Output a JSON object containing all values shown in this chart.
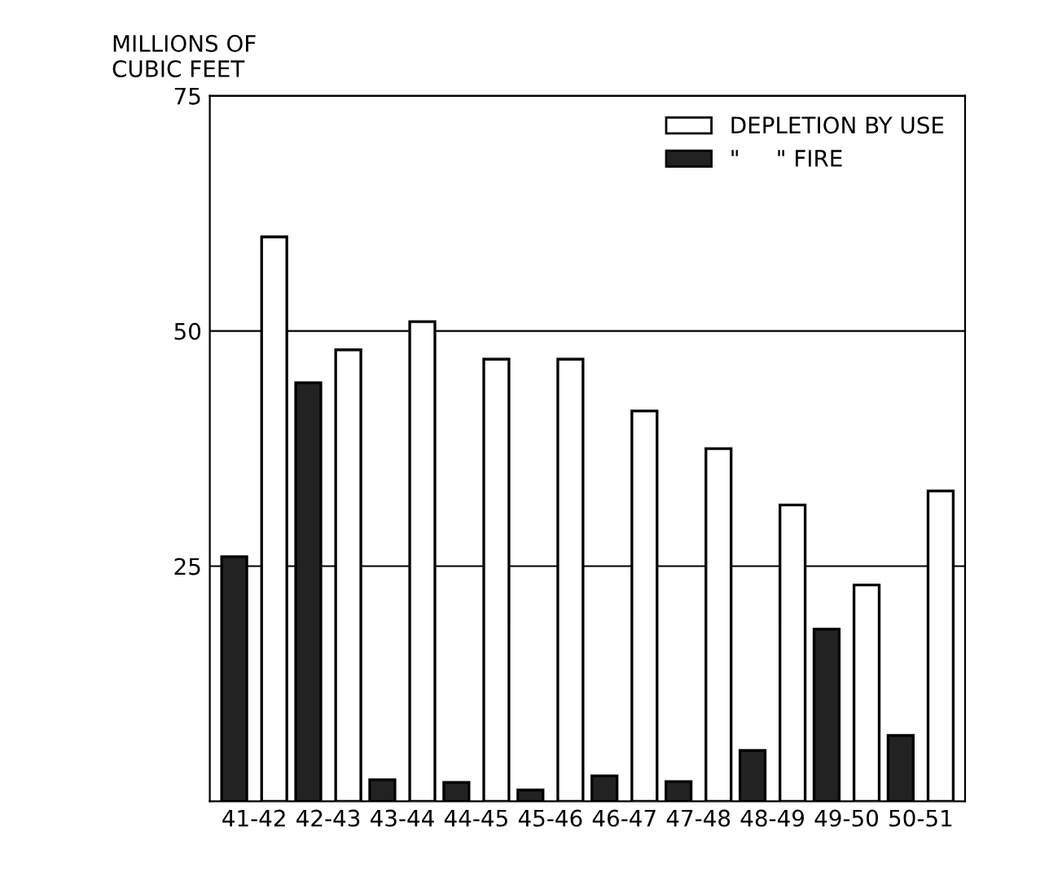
{
  "chart_data": {
    "type": "bar",
    "ylabel": "MILLIONS OF\nCUBIC FEET",
    "categories": [
      "41-42",
      "42-43",
      "43-44",
      "44-45",
      "45-46",
      "46-47",
      "47-48",
      "48-49",
      "49-50",
      "50-51"
    ],
    "series": [
      {
        "name": "\"     \" FIRE",
        "color": "#222222",
        "values": [
          26,
          44.5,
          2.3,
          2,
          1.2,
          2.7,
          2.1,
          5.4,
          18.3,
          7
        ]
      },
      {
        "name": "DEPLETION BY USE",
        "color": "#ffffff",
        "values": [
          60,
          48,
          51,
          47,
          47,
          41.5,
          37.5,
          31.5,
          23,
          33
        ]
      }
    ],
    "ylim": [
      0,
      75
    ],
    "yticks": [
      25,
      50,
      75
    ],
    "grid": "y",
    "legend": "top right"
  }
}
